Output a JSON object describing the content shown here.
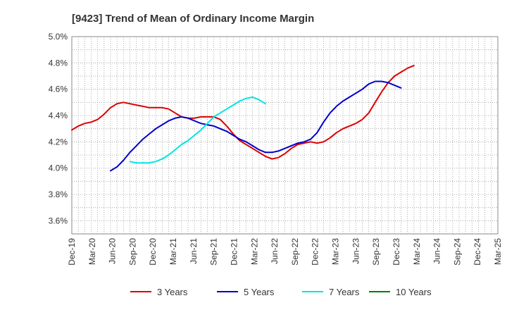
{
  "chart_data": {
    "type": "line",
    "title": "[9423]  Trend of Mean of Ordinary Income Margin",
    "xlabel": "",
    "ylabel": "",
    "x_ticks": [
      "Dec-19",
      "Mar-20",
      "Jun-20",
      "Sep-20",
      "Dec-20",
      "Mar-21",
      "Jun-21",
      "Sep-21",
      "Dec-21",
      "Mar-22",
      "Jun-22",
      "Sep-22",
      "Dec-22",
      "Mar-23",
      "Jun-23",
      "Sep-23",
      "Dec-23",
      "Mar-24",
      "Jun-24",
      "Sep-24",
      "Dec-24",
      "Mar-25"
    ],
    "y_ticks": [
      "3.6%",
      "3.8%",
      "4.0%",
      "4.2%",
      "4.4%",
      "4.6%",
      "4.8%",
      "5.0%"
    ],
    "ylim": [
      3.5,
      5.0
    ],
    "grid": true,
    "legend_position": "bottom",
    "series": [
      {
        "name": "3 Years",
        "color": "#dd0000",
        "points": [
          [
            0,
            4.29
          ],
          [
            1,
            4.32
          ],
          [
            2,
            4.34
          ],
          [
            3,
            4.35
          ],
          [
            4,
            4.37
          ],
          [
            5,
            4.41
          ],
          [
            6,
            4.46
          ],
          [
            7,
            4.49
          ],
          [
            8,
            4.5
          ],
          [
            9,
            4.49
          ],
          [
            10,
            4.48
          ],
          [
            11,
            4.47
          ],
          [
            12,
            4.46
          ],
          [
            13,
            4.46
          ],
          [
            14,
            4.46
          ],
          [
            15,
            4.45
          ],
          [
            16,
            4.42
          ],
          [
            17,
            4.39
          ],
          [
            18,
            4.38
          ],
          [
            19,
            4.38
          ],
          [
            20,
            4.39
          ],
          [
            21,
            4.39
          ],
          [
            22,
            4.39
          ],
          [
            23,
            4.37
          ],
          [
            24,
            4.32
          ],
          [
            25,
            4.26
          ],
          [
            26,
            4.21
          ],
          [
            27,
            4.18
          ],
          [
            28,
            4.15
          ],
          [
            29,
            4.12
          ],
          [
            30,
            4.09
          ],
          [
            31,
            4.07
          ],
          [
            32,
            4.08
          ],
          [
            33,
            4.11
          ],
          [
            34,
            4.15
          ],
          [
            35,
            4.18
          ],
          [
            36,
            4.19
          ],
          [
            37,
            4.2
          ],
          [
            38,
            4.19
          ],
          [
            39,
            4.2
          ],
          [
            40,
            4.23
          ],
          [
            41,
            4.27
          ],
          [
            42,
            4.3
          ],
          [
            43,
            4.32
          ],
          [
            44,
            4.34
          ],
          [
            45,
            4.37
          ],
          [
            46,
            4.42
          ],
          [
            47,
            4.5
          ],
          [
            48,
            4.58
          ],
          [
            49,
            4.65
          ],
          [
            50,
            4.7
          ],
          [
            51,
            4.73
          ],
          [
            52,
            4.76
          ],
          [
            53,
            4.78
          ]
        ]
      },
      {
        "name": "5 Years",
        "color": "#0000cc",
        "points": [
          [
            6,
            3.98
          ],
          [
            7,
            4.01
          ],
          [
            8,
            4.06
          ],
          [
            9,
            4.12
          ],
          [
            10,
            4.17
          ],
          [
            11,
            4.22
          ],
          [
            12,
            4.26
          ],
          [
            13,
            4.3
          ],
          [
            14,
            4.33
          ],
          [
            15,
            4.36
          ],
          [
            16,
            4.38
          ],
          [
            17,
            4.39
          ],
          [
            18,
            4.38
          ],
          [
            19,
            4.36
          ],
          [
            20,
            4.34
          ],
          [
            21,
            4.33
          ],
          [
            22,
            4.32
          ],
          [
            23,
            4.3
          ],
          [
            24,
            4.28
          ],
          [
            25,
            4.25
          ],
          [
            26,
            4.22
          ],
          [
            27,
            4.2
          ],
          [
            28,
            4.17
          ],
          [
            29,
            4.14
          ],
          [
            30,
            4.12
          ],
          [
            31,
            4.12
          ],
          [
            32,
            4.13
          ],
          [
            33,
            4.15
          ],
          [
            34,
            4.17
          ],
          [
            35,
            4.19
          ],
          [
            36,
            4.2
          ],
          [
            37,
            4.22
          ],
          [
            38,
            4.27
          ],
          [
            39,
            4.35
          ],
          [
            40,
            4.42
          ],
          [
            41,
            4.47
          ],
          [
            42,
            4.51
          ],
          [
            43,
            4.54
          ],
          [
            44,
            4.57
          ],
          [
            45,
            4.6
          ],
          [
            46,
            4.64
          ],
          [
            47,
            4.66
          ],
          [
            48,
            4.66
          ],
          [
            49,
            4.65
          ],
          [
            50,
            4.63
          ],
          [
            51,
            4.61
          ]
        ]
      },
      {
        "name": "7 Years",
        "color": "#00e5e5",
        "points": [
          [
            9,
            4.05
          ],
          [
            10,
            4.04
          ],
          [
            11,
            4.04
          ],
          [
            12,
            4.04
          ],
          [
            13,
            4.05
          ],
          [
            14,
            4.07
          ],
          [
            15,
            4.1
          ],
          [
            16,
            4.14
          ],
          [
            17,
            4.18
          ],
          [
            18,
            4.21
          ],
          [
            19,
            4.25
          ],
          [
            20,
            4.29
          ],
          [
            21,
            4.34
          ],
          [
            22,
            4.39
          ],
          [
            23,
            4.42
          ],
          [
            24,
            4.45
          ],
          [
            25,
            4.48
          ],
          [
            26,
            4.51
          ],
          [
            27,
            4.53
          ],
          [
            28,
            4.54
          ],
          [
            29,
            4.52
          ],
          [
            30,
            4.49
          ]
        ]
      },
      {
        "name": "10 Years",
        "color": "#008000",
        "points": []
      }
    ]
  }
}
